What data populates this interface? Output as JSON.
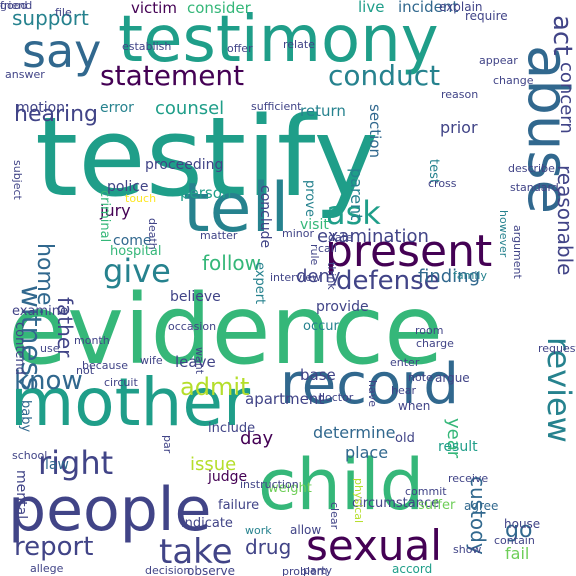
{
  "palette": {
    "purple": "#440154",
    "indigo": "#414487",
    "blue": "#31688e",
    "teal": "#26828e",
    "green": "#1f9e89",
    "mint": "#35b779",
    "lime": "#6ece58",
    "yellow": "#b5de2b",
    "gold": "#fde725"
  },
  "words": [
    {
      "text": "testify",
      "color": "green"
    },
    {
      "text": "evidence",
      "color": "mint"
    },
    {
      "text": "testimony",
      "color": "green"
    },
    {
      "text": "child",
      "color": "mint"
    },
    {
      "text": "people",
      "color": "indigo"
    },
    {
      "text": "mother",
      "color": "green"
    },
    {
      "text": "record",
      "color": "blue"
    },
    {
      "text": "abuse",
      "color": "blue"
    },
    {
      "text": "tell",
      "color": "teal"
    },
    {
      "text": "sexual",
      "color": "purple"
    },
    {
      "text": "present",
      "color": "purple"
    },
    {
      "text": "say",
      "color": "blue"
    },
    {
      "text": "statement",
      "color": "purple"
    },
    {
      "text": "conduct",
      "color": "teal"
    },
    {
      "text": "ask",
      "color": "green"
    },
    {
      "text": "give",
      "color": "teal"
    },
    {
      "text": "witness",
      "color": "blue"
    },
    {
      "text": "right",
      "color": "indigo"
    },
    {
      "text": "take",
      "color": "indigo"
    },
    {
      "text": "know",
      "color": "blue"
    },
    {
      "text": "review",
      "color": "teal"
    },
    {
      "text": "admit",
      "color": "yellow"
    },
    {
      "text": "defense",
      "color": "indigo"
    },
    {
      "text": "home",
      "color": "blue"
    },
    {
      "text": "report",
      "color": "indigo"
    },
    {
      "text": "hearing",
      "color": "indigo"
    },
    {
      "text": "support",
      "color": "teal"
    },
    {
      "text": "act",
      "color": "indigo"
    },
    {
      "text": "father",
      "color": "indigo"
    },
    {
      "text": "custody",
      "color": "blue"
    },
    {
      "text": "follow",
      "color": "mint"
    },
    {
      "text": "drug",
      "color": "indigo"
    },
    {
      "text": "go",
      "color": "blue"
    },
    {
      "text": "issue",
      "color": "yellow"
    },
    {
      "text": "examination",
      "color": "indigo"
    },
    {
      "text": "deny",
      "color": "indigo"
    },
    {
      "text": "year",
      "color": "mint"
    },
    {
      "text": "counsel",
      "color": "green"
    },
    {
      "text": "finding",
      "color": "blue"
    },
    {
      "text": "reasonable",
      "color": "indigo"
    },
    {
      "text": "concern",
      "color": "indigo"
    },
    {
      "text": "victim",
      "color": "purple"
    },
    {
      "text": "consider",
      "color": "mint"
    },
    {
      "text": "incident",
      "color": "blue"
    },
    {
      "text": "live",
      "color": "green"
    },
    {
      "text": "jury",
      "color": "purple"
    },
    {
      "text": "fail",
      "color": "lime"
    },
    {
      "text": "determine",
      "color": "blue"
    },
    {
      "text": "place",
      "color": "blue"
    },
    {
      "text": "prior",
      "color": "indigo"
    },
    {
      "text": "day",
      "color": "purple"
    },
    {
      "text": "provide",
      "color": "indigo"
    },
    {
      "text": "result",
      "color": "green"
    },
    {
      "text": "law",
      "color": "blue"
    },
    {
      "text": "judge",
      "color": "purple"
    },
    {
      "text": "mental",
      "color": "indigo"
    },
    {
      "text": "parent",
      "color": "teal"
    },
    {
      "text": "police",
      "color": "indigo"
    },
    {
      "text": "leave",
      "color": "indigo"
    },
    {
      "text": "apartment",
      "color": "indigo"
    },
    {
      "text": "base",
      "color": "indigo"
    },
    {
      "text": "motion",
      "color": "indigo"
    },
    {
      "text": "error",
      "color": "teal"
    },
    {
      "text": "return",
      "color": "teal"
    },
    {
      "text": "section",
      "color": "blue"
    },
    {
      "text": "visit",
      "color": "mint"
    },
    {
      "text": "person",
      "color": "green"
    },
    {
      "text": "conclude",
      "color": "indigo"
    },
    {
      "text": "believe",
      "color": "indigo"
    },
    {
      "text": "come",
      "color": "blue"
    },
    {
      "text": "hospital",
      "color": "mint"
    },
    {
      "text": "proceeding",
      "color": "indigo"
    },
    {
      "text": "criminal",
      "color": "mint"
    },
    {
      "text": "occur",
      "color": "teal"
    },
    {
      "text": "contend",
      "color": "indigo"
    },
    {
      "text": "examine",
      "color": "indigo"
    },
    {
      "text": "expert",
      "color": "teal"
    },
    {
      "text": "prove",
      "color": "teal"
    },
    {
      "text": "test",
      "color": "teal"
    },
    {
      "text": "old",
      "color": "indigo"
    },
    {
      "text": "school",
      "color": "indigo"
    },
    {
      "text": "baby",
      "color": "blue"
    },
    {
      "text": "include",
      "color": "indigo"
    },
    {
      "text": "weight",
      "color": "lime"
    },
    {
      "text": "indicate",
      "color": "indigo"
    },
    {
      "text": "allege",
      "color": "indigo"
    },
    {
      "text": "failure",
      "color": "indigo"
    },
    {
      "text": "work",
      "color": "teal"
    },
    {
      "text": "allow",
      "color": "indigo"
    },
    {
      "text": "circumstance",
      "color": "indigo"
    },
    {
      "text": "observe",
      "color": "indigo"
    },
    {
      "text": "decision",
      "color": "indigo"
    },
    {
      "text": "accord",
      "color": "green"
    },
    {
      "text": "suffer",
      "color": "lime"
    },
    {
      "text": "receive",
      "color": "indigo"
    },
    {
      "text": "house",
      "color": "indigo"
    },
    {
      "text": "agree",
      "color": "blue"
    },
    {
      "text": "contain",
      "color": "indigo"
    },
    {
      "text": "argue",
      "color": "indigo"
    },
    {
      "text": "when",
      "color": "indigo"
    },
    {
      "text": "note",
      "color": "indigo"
    },
    {
      "text": "request",
      "color": "indigo"
    },
    {
      "text": "charge",
      "color": "indigo"
    },
    {
      "text": "enter",
      "color": "indigo"
    },
    {
      "text": "room",
      "color": "indigo"
    },
    {
      "text": "cross",
      "color": "indigo"
    },
    {
      "text": "however",
      "color": "teal"
    },
    {
      "text": "family",
      "color": "teal"
    },
    {
      "text": "argument",
      "color": "indigo"
    },
    {
      "text": "describe",
      "color": "indigo"
    },
    {
      "text": "standard",
      "color": "indigo"
    },
    {
      "text": "touch",
      "color": "gold"
    },
    {
      "text": "death",
      "color": "indigo"
    },
    {
      "text": "matter",
      "color": "indigo"
    },
    {
      "text": "date",
      "color": "indigo"
    },
    {
      "text": "call",
      "color": "indigo"
    },
    {
      "text": "minor",
      "color": "indigo"
    },
    {
      "text": "rule",
      "color": "indigo"
    },
    {
      "text": "think",
      "color": "indigo"
    },
    {
      "text": "require",
      "color": "indigo"
    },
    {
      "text": "explain",
      "color": "indigo"
    },
    {
      "text": "appear",
      "color": "indigo"
    },
    {
      "text": "change",
      "color": "indigo"
    },
    {
      "text": "reason",
      "color": "indigo"
    },
    {
      "text": "sufficient",
      "color": "indigo"
    },
    {
      "text": "relate",
      "color": "indigo"
    },
    {
      "text": "answer",
      "color": "indigo"
    },
    {
      "text": "file",
      "color": "indigo"
    },
    {
      "text": "establish",
      "color": "indigo"
    },
    {
      "text": "offer",
      "color": "indigo"
    },
    {
      "text": "have",
      "color": "indigo"
    },
    {
      "text": "doctor",
      "color": "indigo"
    },
    {
      "text": "interview",
      "color": "indigo"
    },
    {
      "text": "occasion",
      "color": "indigo"
    },
    {
      "text": "month",
      "color": "indigo"
    },
    {
      "text": "use",
      "color": "indigo"
    },
    {
      "text": "wife",
      "color": "indigo"
    },
    {
      "text": "not",
      "color": "indigo"
    },
    {
      "text": "because",
      "color": "indigo"
    },
    {
      "text": "want",
      "color": "indigo"
    },
    {
      "text": "hear",
      "color": "indigo"
    },
    {
      "text": "physical",
      "color": "yellow"
    },
    {
      "text": "par",
      "color": "indigo"
    },
    {
      "text": "circuit",
      "color": "indigo"
    },
    {
      "text": "subject",
      "color": "indigo"
    },
    {
      "text": "clear",
      "color": "indigo"
    },
    {
      "text": "problem",
      "color": "indigo"
    },
    {
      "text": "party",
      "color": "indigo"
    },
    {
      "text": "show",
      "color": "indigo"
    },
    {
      "text": "instruction",
      "color": "indigo"
    },
    {
      "text": "commit",
      "color": "indigo"
    },
    {
      "text": "friend",
      "color": "indigo"
    },
    {
      "text": "good",
      "color": "indigo"
    }
  ]
}
